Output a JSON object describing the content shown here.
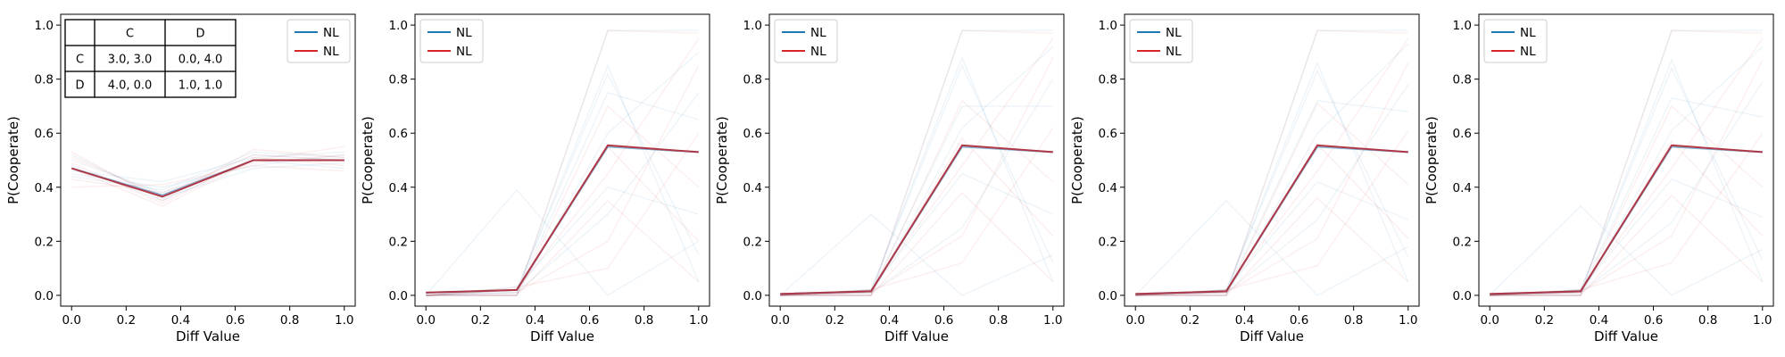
{
  "chart_data": [
    {
      "type": "line",
      "xlabel": "Diff Value",
      "ylabel": "P(Cooperate)",
      "xlim": [
        -0.04,
        1.04
      ],
      "ylim": [
        -0.04,
        1.04
      ],
      "xticks": [
        "0.0",
        "0.2",
        "0.4",
        "0.6",
        "0.8",
        "1.0"
      ],
      "yticks": [
        "0.0",
        "0.2",
        "0.4",
        "0.6",
        "0.8",
        "1.0"
      ],
      "legend": {
        "position": "top-right",
        "entries": [
          {
            "label": "NL",
            "color": "#1f77b4"
          },
          {
            "label": "NL",
            "color": "#d62728"
          }
        ]
      },
      "payoff_table": {
        "col_headers": [
          "",
          "C",
          "D"
        ],
        "rows": [
          {
            "label": "C",
            "cells": [
              "3.0, 3.0",
              "0.0, 4.0"
            ]
          },
          {
            "label": "D",
            "cells": [
              "4.0, 0.0",
              "1.0, 1.0"
            ]
          }
        ]
      },
      "x": [
        0,
        0.333,
        0.667,
        1.0
      ],
      "mean_blue": [
        0.47,
        0.37,
        0.5,
        0.5
      ],
      "mean_red": [
        0.47,
        0.365,
        0.5,
        0.5
      ],
      "faint_blue": [
        [
          0.5,
          0.38,
          0.52,
          0.5
        ],
        [
          0.45,
          0.4,
          0.48,
          0.52
        ],
        [
          0.48,
          0.35,
          0.5,
          0.47
        ],
        [
          0.44,
          0.39,
          0.53,
          0.51
        ],
        [
          0.52,
          0.36,
          0.47,
          0.49
        ],
        [
          0.46,
          0.42,
          0.51,
          0.53
        ]
      ],
      "faint_red": [
        [
          0.49,
          0.34,
          0.51,
          0.48
        ],
        [
          0.43,
          0.38,
          0.49,
          0.52
        ],
        [
          0.51,
          0.37,
          0.52,
          0.5
        ],
        [
          0.47,
          0.33,
          0.5,
          0.55
        ],
        [
          0.4,
          0.41,
          0.48,
          0.46
        ],
        [
          0.53,
          0.35,
          0.54,
          0.51
        ]
      ]
    },
    {
      "type": "line",
      "xlabel": "Diff Value",
      "ylabel": "P(Cooperate)",
      "xlim": [
        -0.04,
        1.04
      ],
      "ylim": [
        -0.04,
        1.04
      ],
      "xticks": [
        "0.0",
        "0.2",
        "0.4",
        "0.6",
        "0.8",
        "1.0"
      ],
      "yticks": [
        "0.0",
        "0.2",
        "0.4",
        "0.6",
        "0.8",
        "1.0"
      ],
      "legend": {
        "position": "top-left",
        "entries": [
          {
            "label": "NL",
            "color": "#1f77b4"
          },
          {
            "label": "NL",
            "color": "#d62728"
          }
        ]
      },
      "x": [
        0,
        0.333,
        0.667,
        1.0
      ],
      "mean_blue": [
        0.01,
        0.02,
        0.55,
        0.53
      ],
      "mean_red": [
        0.01,
        0.02,
        0.555,
        0.53
      ],
      "faint_blue": [
        [
          0.0,
          0.0,
          0.98,
          0.98
        ],
        [
          0.0,
          0.02,
          0.85,
          0.05
        ],
        [
          0.0,
          0.01,
          0.75,
          0.65
        ],
        [
          0.0,
          0.0,
          0.6,
          0.9
        ],
        [
          0.0,
          0.03,
          0.4,
          0.3
        ],
        [
          0.0,
          0.39,
          0.0,
          0.2
        ],
        [
          0.0,
          0.01,
          0.3,
          0.75
        ],
        [
          0.0,
          0.02,
          0.82,
          0.15
        ]
      ],
      "faint_red": [
        [
          0.0,
          0.0,
          0.98,
          0.97
        ],
        [
          0.0,
          0.02,
          0.45,
          0.95
        ],
        [
          0.0,
          0.01,
          0.2,
          0.85
        ],
        [
          0.0,
          0.0,
          0.7,
          0.4
        ],
        [
          0.0,
          0.03,
          0.1,
          0.6
        ],
        [
          0.0,
          0.0,
          0.35,
          0.05
        ],
        [
          0.0,
          0.02,
          0.55,
          0.2
        ]
      ]
    },
    {
      "type": "line",
      "xlabel": "Diff Value",
      "ylabel": "P(Cooperate)",
      "xlim": [
        -0.04,
        1.04
      ],
      "ylim": [
        -0.04,
        1.04
      ],
      "xticks": [
        "0.0",
        "0.2",
        "0.4",
        "0.6",
        "0.8",
        "1.0"
      ],
      "yticks": [
        "0.0",
        "0.2",
        "0.4",
        "0.6",
        "0.8",
        "1.0"
      ],
      "legend": {
        "position": "top-left",
        "entries": [
          {
            "label": "NL",
            "color": "#1f77b4"
          },
          {
            "label": "NL",
            "color": "#d62728"
          }
        ]
      },
      "x": [
        0,
        0.333,
        0.667,
        1.0
      ],
      "mean_blue": [
        0.005,
        0.015,
        0.55,
        0.53
      ],
      "mean_red": [
        0.005,
        0.015,
        0.555,
        0.53
      ],
      "faint_blue": [
        [
          0.0,
          0.0,
          0.98,
          0.98
        ],
        [
          0.0,
          0.02,
          0.88,
          0.05
        ],
        [
          0.0,
          0.01,
          0.7,
          0.7
        ],
        [
          0.0,
          0.0,
          0.62,
          0.92
        ],
        [
          0.0,
          0.02,
          0.45,
          0.3
        ],
        [
          0.0,
          0.3,
          0.0,
          0.15
        ],
        [
          0.0,
          0.01,
          0.25,
          0.8
        ],
        [
          0.0,
          0.02,
          0.85,
          0.12
        ]
      ],
      "faint_red": [
        [
          0.0,
          0.0,
          0.98,
          0.97
        ],
        [
          0.0,
          0.02,
          0.48,
          0.95
        ],
        [
          0.0,
          0.01,
          0.22,
          0.88
        ],
        [
          0.0,
          0.0,
          0.72,
          0.42
        ],
        [
          0.0,
          0.02,
          0.12,
          0.62
        ],
        [
          0.0,
          0.0,
          0.38,
          0.05
        ],
        [
          0.0,
          0.01,
          0.58,
          0.22
        ]
      ]
    },
    {
      "type": "line",
      "xlabel": "Diff Value",
      "ylabel": "P(Cooperate)",
      "xlim": [
        -0.04,
        1.04
      ],
      "ylim": [
        -0.04,
        1.04
      ],
      "xticks": [
        "0.0",
        "0.2",
        "0.4",
        "0.6",
        "0.8",
        "1.0"
      ],
      "yticks": [
        "0.0",
        "0.2",
        "0.4",
        "0.6",
        "0.8",
        "1.0"
      ],
      "legend": {
        "position": "top-left",
        "entries": [
          {
            "label": "NL",
            "color": "#1f77b4"
          },
          {
            "label": "NL",
            "color": "#d62728"
          }
        ]
      },
      "x": [
        0,
        0.333,
        0.667,
        1.0
      ],
      "mean_blue": [
        0.005,
        0.015,
        0.55,
        0.53
      ],
      "mean_red": [
        0.005,
        0.015,
        0.555,
        0.53
      ],
      "faint_blue": [
        [
          0.0,
          0.0,
          0.98,
          0.98
        ],
        [
          0.0,
          0.02,
          0.86,
          0.05
        ],
        [
          0.0,
          0.01,
          0.72,
          0.68
        ],
        [
          0.0,
          0.0,
          0.6,
          0.93
        ],
        [
          0.0,
          0.02,
          0.42,
          0.28
        ],
        [
          0.0,
          0.35,
          0.0,
          0.18
        ],
        [
          0.0,
          0.01,
          0.28,
          0.78
        ],
        [
          0.0,
          0.02,
          0.83,
          0.14
        ]
      ],
      "faint_red": [
        [
          0.0,
          0.0,
          0.98,
          0.97
        ],
        [
          0.0,
          0.02,
          0.46,
          0.95
        ],
        [
          0.0,
          0.01,
          0.21,
          0.86
        ],
        [
          0.0,
          0.0,
          0.71,
          0.41
        ],
        [
          0.0,
          0.02,
          0.11,
          0.61
        ],
        [
          0.0,
          0.0,
          0.36,
          0.05
        ],
        [
          0.0,
          0.01,
          0.56,
          0.21
        ]
      ]
    },
    {
      "type": "line",
      "xlabel": "Diff Value",
      "ylabel": "P(Cooperate)",
      "xlim": [
        -0.04,
        1.04
      ],
      "ylim": [
        -0.04,
        1.04
      ],
      "xticks": [
        "0.0",
        "0.2",
        "0.4",
        "0.6",
        "0.8",
        "1.0"
      ],
      "yticks": [
        "0.0",
        "0.2",
        "0.4",
        "0.6",
        "0.8",
        "1.0"
      ],
      "legend": {
        "position": "top-left",
        "entries": [
          {
            "label": "NL",
            "color": "#1f77b4"
          },
          {
            "label": "NL",
            "color": "#d62728"
          }
        ]
      },
      "x": [
        0,
        0.333,
        0.667,
        1.0
      ],
      "mean_blue": [
        0.005,
        0.015,
        0.55,
        0.53
      ],
      "mean_red": [
        0.005,
        0.015,
        0.555,
        0.53
      ],
      "faint_blue": [
        [
          0.0,
          0.0,
          0.98,
          0.98
        ],
        [
          0.0,
          0.02,
          0.87,
          0.05
        ],
        [
          0.0,
          0.01,
          0.73,
          0.66
        ],
        [
          0.0,
          0.0,
          0.61,
          0.92
        ],
        [
          0.0,
          0.02,
          0.43,
          0.29
        ],
        [
          0.0,
          0.33,
          0.0,
          0.17
        ],
        [
          0.0,
          0.01,
          0.27,
          0.79
        ],
        [
          0.0,
          0.02,
          0.84,
          0.13
        ]
      ],
      "faint_red": [
        [
          0.0,
          0.0,
          0.98,
          0.97
        ],
        [
          0.0,
          0.02,
          0.47,
          0.95
        ],
        [
          0.0,
          0.01,
          0.22,
          0.87
        ],
        [
          0.0,
          0.0,
          0.7,
          0.4
        ],
        [
          0.0,
          0.02,
          0.12,
          0.6
        ],
        [
          0.0,
          0.0,
          0.37,
          0.05
        ],
        [
          0.0,
          0.01,
          0.57,
          0.22
        ]
      ]
    }
  ]
}
